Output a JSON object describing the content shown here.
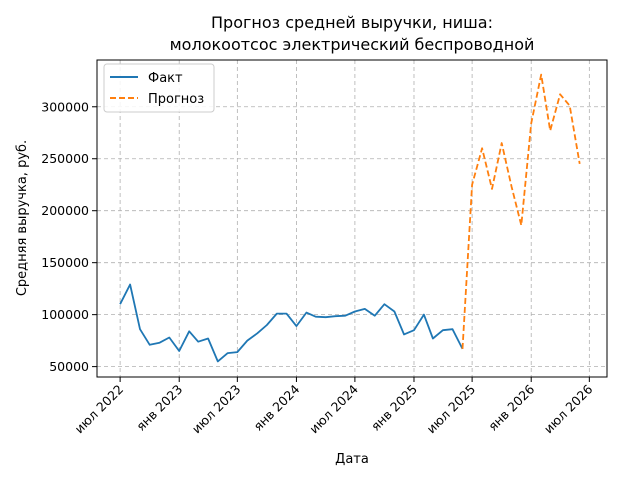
{
  "chart_data": {
    "type": "line",
    "title_line1": "Прогноз средней выручки, ниша:",
    "title_line2": "молокоотсос электрический беспроводной",
    "xlabel": "Дата",
    "ylabel": "Средняя выручка, руб.",
    "grid": true,
    "legend_position": "top-left",
    "x_ticks": [
      {
        "date": "2022-07-01",
        "label": "июл 2022"
      },
      {
        "date": "2023-01-01",
        "label": "янв 2023"
      },
      {
        "date": "2023-07-01",
        "label": "июл 2023"
      },
      {
        "date": "2024-01-01",
        "label": "янв 2024"
      },
      {
        "date": "2024-07-01",
        "label": "июл 2024"
      },
      {
        "date": "2025-01-01",
        "label": "янв 2025"
      },
      {
        "date": "2025-07-01",
        "label": "июл 2025"
      },
      {
        "date": "2026-01-01",
        "label": "янв 2026"
      },
      {
        "date": "2026-07-01",
        "label": "июл 2026"
      }
    ],
    "y_ticks": [
      50000,
      100000,
      150000,
      200000,
      250000,
      300000
    ],
    "ylim": [
      40000,
      345000
    ],
    "xlim": [
      "2022-04-20",
      "2026-08-25"
    ],
    "series": [
      {
        "name": "Факт",
        "color": "#1f77b4",
        "style": "solid",
        "points": [
          [
            "2022-07-01",
            110000
          ],
          [
            "2022-08-01",
            129000
          ],
          [
            "2022-09-01",
            86000
          ],
          [
            "2022-10-01",
            71000
          ],
          [
            "2022-11-01",
            73000
          ],
          [
            "2022-12-01",
            78000
          ],
          [
            "2023-01-01",
            65000
          ],
          [
            "2023-02-01",
            84000
          ],
          [
            "2023-03-01",
            74000
          ],
          [
            "2023-04-01",
            77000
          ],
          [
            "2023-05-01",
            55000
          ],
          [
            "2023-06-01",
            63000
          ],
          [
            "2023-07-01",
            64000
          ],
          [
            "2023-08-01",
            75000
          ],
          [
            "2023-09-01",
            82000
          ],
          [
            "2023-10-01",
            90000
          ],
          [
            "2023-11-01",
            101000
          ],
          [
            "2023-12-01",
            101000
          ],
          [
            "2024-01-01",
            89000
          ],
          [
            "2024-02-01",
            102000
          ],
          [
            "2024-03-01",
            98000
          ],
          [
            "2024-04-01",
            97500
          ],
          [
            "2024-05-01",
            98500
          ],
          [
            "2024-06-01",
            99000
          ],
          [
            "2024-07-01",
            103000
          ],
          [
            "2024-08-01",
            105500
          ],
          [
            "2024-09-01",
            99000
          ],
          [
            "2024-10-01",
            110000
          ],
          [
            "2024-11-01",
            103000
          ],
          [
            "2024-12-01",
            81000
          ],
          [
            "2025-01-01",
            85000
          ],
          [
            "2025-02-01",
            100000
          ],
          [
            "2025-03-01",
            77000
          ],
          [
            "2025-04-01",
            85000
          ],
          [
            "2025-05-01",
            86000
          ],
          [
            "2025-06-01",
            67000
          ]
        ]
      },
      {
        "name": "Прогноз",
        "color": "#ff7f0e",
        "style": "dashed",
        "points": [
          [
            "2025-06-01",
            67000
          ],
          [
            "2025-07-01",
            225000
          ],
          [
            "2025-08-01",
            260000
          ],
          [
            "2025-09-01",
            221000
          ],
          [
            "2025-10-01",
            265000
          ],
          [
            "2025-11-01",
            223000
          ],
          [
            "2025-12-01",
            186000
          ],
          [
            "2026-01-01",
            284000
          ],
          [
            "2026-02-01",
            331000
          ],
          [
            "2026-03-01",
            277000
          ],
          [
            "2026-04-01",
            312000
          ],
          [
            "2026-05-01",
            301000
          ],
          [
            "2026-06-01",
            245000
          ]
        ]
      }
    ]
  }
}
